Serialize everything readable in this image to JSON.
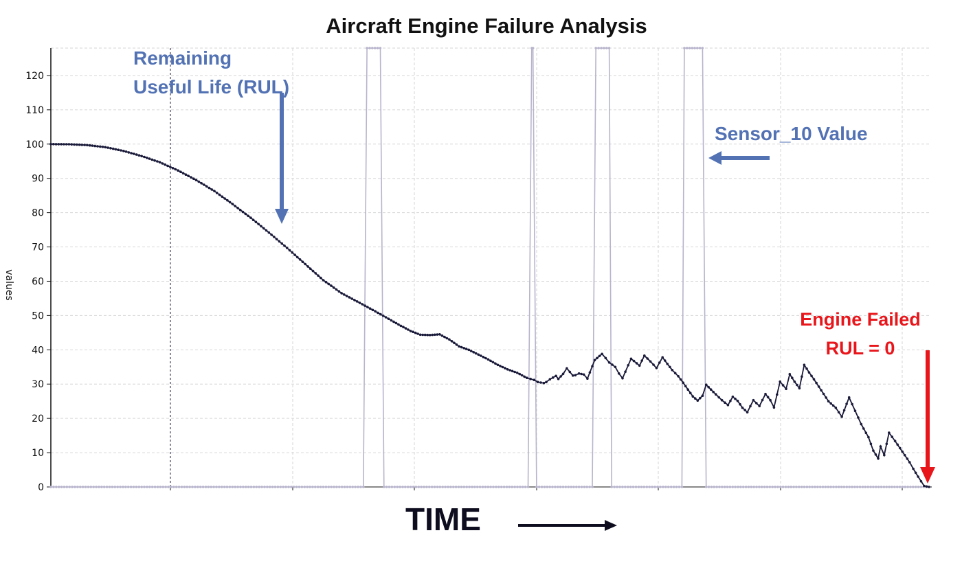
{
  "chart_data": {
    "type": "line",
    "title": "Aircraft Engine Failure Analysis",
    "ylabel": "values",
    "xlabel": "TIME",
    "ylim": [
      0,
      128
    ],
    "y_ticks": [
      0,
      10,
      20,
      30,
      40,
      50,
      60,
      70,
      80,
      90,
      100,
      110,
      120
    ],
    "x_range": [
      0,
      725
    ],
    "grid": true,
    "series": [
      {
        "name": "Sensor_10 Value",
        "color": "#1a1a3a",
        "x": [
          0,
          15,
          30,
          45,
          60,
          75,
          90,
          105,
          120,
          135,
          150,
          165,
          180,
          195,
          210,
          225,
          240,
          255,
          270,
          281,
          289,
          297,
          305,
          313,
          321,
          329,
          337,
          345,
          353,
          361,
          369,
          377,
          385,
          393,
          396,
          399,
          402,
          407,
          409,
          412,
          417,
          419,
          423,
          426,
          431,
          433,
          436,
          440,
          443,
          449,
          455,
          458,
          461,
          466,
          469,
          472,
          479,
          486,
          490,
          495,
          500,
          505,
          509,
          513,
          518,
          522,
          526,
          530,
          534,
          538,
          541,
          545,
          549,
          554,
          559,
          563,
          567,
          571,
          575,
          580,
          585,
          590,
          594,
          597,
          602,
          607,
          610,
          614,
          618,
          622,
          626,
          630,
          636,
          642,
          648,
          653,
          659,
          664,
          669,
          675,
          679,
          683,
          685,
          688,
          692,
          697,
          703,
          709,
          712,
          716,
          721,
          725
        ],
        "values": [
          100,
          99.95,
          99.7,
          99.1,
          98,
          96.5,
          94.7,
          92.3,
          89.5,
          86.3,
          82.5,
          78.5,
          74.2,
          69.7,
          65,
          60.3,
          56.5,
          53.7,
          50.8,
          48.6,
          47,
          45.5,
          44.4,
          44.3,
          44.5,
          43,
          41,
          40,
          38.6,
          37.2,
          35.6,
          34.3,
          33.3,
          31.8,
          31.5,
          31.2,
          30.6,
          30.3,
          30.6,
          31.4,
          32.4,
          31.5,
          33,
          34.6,
          32.5,
          32.6,
          33.1,
          32.8,
          31.6,
          37,
          38.8,
          37.6,
          36.3,
          35,
          33.1,
          31.7,
          37.4,
          35.4,
          38.3,
          36.6,
          34.7,
          37.8,
          35.9,
          34.1,
          32.3,
          30.4,
          28.4,
          26.4,
          25.2,
          26.6,
          29.8,
          28.4,
          27,
          25.3,
          23.9,
          26.3,
          25.1,
          23.1,
          21.8,
          25.3,
          23.6,
          27.1,
          25.3,
          23.2,
          30.7,
          28.6,
          32.9,
          30.7,
          28.8,
          35.6,
          33.4,
          31.4,
          28.2,
          25,
          23.1,
          20.5,
          26.1,
          22.2,
          18.3,
          14.5,
          10.6,
          8.3,
          11.8,
          9.3,
          15.8,
          13.4,
          10.3,
          7.2,
          5.3,
          3,
          0.3,
          0
        ]
      },
      {
        "name": "",
        "color": "#b7b4cc",
        "x": [
          0,
          258,
          261,
          272,
          275,
          394,
          397,
          398,
          401,
          447,
          450,
          461,
          463,
          521,
          523,
          538,
          541,
          725
        ],
        "values": [
          0,
          0,
          128,
          128,
          0,
          0,
          128,
          128,
          0,
          0,
          128,
          128,
          0,
          0,
          128,
          128,
          0,
          0
        ]
      }
    ],
    "annotations": [
      {
        "text_lines": [
          "Remaining",
          "Useful Life (RUL)"
        ],
        "color": "#5272b4"
      },
      {
        "text_lines": [
          "Sensor_10 Value"
        ],
        "color": "#5272b4"
      },
      {
        "text_lines": [
          "Engine Failed",
          "RUL = 0"
        ],
        "color": "#e8161b"
      }
    ]
  }
}
